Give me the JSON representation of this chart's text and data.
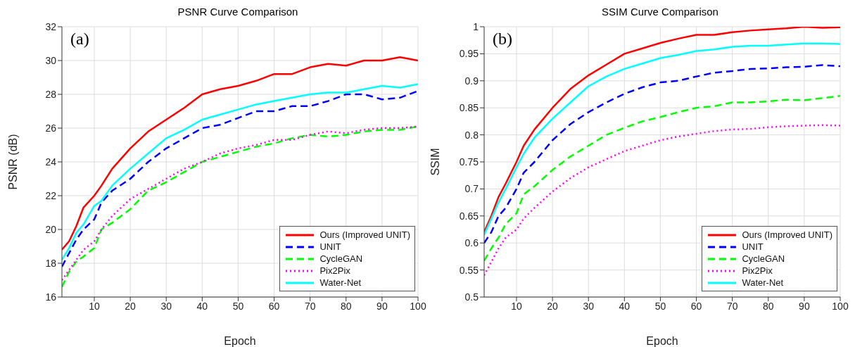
{
  "chart_data": [
    {
      "type": "line",
      "title": "PSNR Curve Comparison",
      "xlabel": "Epoch",
      "ylabel": "PSNR (dB)",
      "annotations": [
        "(a)"
      ],
      "x": [
        1,
        3,
        5,
        7,
        10,
        12,
        15,
        20,
        25,
        30,
        35,
        40,
        45,
        50,
        55,
        60,
        65,
        70,
        75,
        80,
        85,
        90,
        95,
        100
      ],
      "series": [
        {
          "name": "Ours (Improved UNIT)",
          "color": "#ff0000",
          "line_style": "solid",
          "values": [
            18.8,
            19.3,
            20.2,
            21.3,
            22.0,
            22.6,
            23.6,
            24.8,
            25.8,
            26.5,
            27.2,
            28.0,
            28.3,
            28.5,
            28.8,
            29.2,
            29.2,
            29.6,
            29.8,
            29.7,
            30.0,
            30.0,
            30.2,
            30.0
          ]
        },
        {
          "name": "UNIT",
          "color": "#0000ff",
          "line_style": "dashed",
          "values": [
            17.8,
            18.6,
            19.4,
            20.0,
            20.6,
            21.6,
            22.3,
            23.0,
            24.0,
            24.8,
            25.4,
            26.0,
            26.2,
            26.6,
            27.0,
            27.0,
            27.3,
            27.3,
            27.6,
            28.0,
            28.0,
            27.7,
            27.8,
            28.2
          ]
        },
        {
          "name": "CycleGAN",
          "color": "#00ff00",
          "line_style": "dashed",
          "values": [
            16.6,
            17.5,
            18.1,
            18.4,
            18.9,
            20.0,
            20.4,
            21.2,
            22.3,
            22.8,
            23.4,
            24.0,
            24.3,
            24.6,
            24.9,
            25.1,
            25.4,
            25.6,
            25.5,
            25.6,
            25.8,
            25.9,
            25.9,
            26.1
          ]
        },
        {
          "name": "Pix2Pix",
          "color": "#ff00ff",
          "line_style": "dotted",
          "values": [
            17.0,
            17.6,
            18.2,
            18.8,
            19.3,
            20.0,
            20.8,
            21.8,
            22.4,
            23.0,
            23.6,
            24.0,
            24.5,
            24.8,
            25.0,
            25.3,
            25.3,
            25.6,
            25.8,
            25.7,
            25.9,
            26.0,
            26.0,
            26.1
          ]
        },
        {
          "name": "Water-Net",
          "color": "#00ffff",
          "line_style": "solid",
          "values": [
            18.2,
            18.9,
            19.8,
            20.3,
            21.4,
            21.7,
            22.6,
            23.6,
            24.5,
            25.4,
            25.9,
            26.5,
            26.8,
            27.1,
            27.4,
            27.6,
            27.8,
            28.0,
            28.1,
            28.1,
            28.3,
            28.5,
            28.4,
            28.6
          ]
        }
      ],
      "xlim": [
        1,
        100
      ],
      "xticks": [
        10,
        20,
        30,
        40,
        50,
        60,
        70,
        80,
        90,
        100
      ],
      "ylim": [
        16,
        32
      ],
      "yticks": [
        16,
        18,
        20,
        22,
        24,
        26,
        28,
        30,
        32
      ],
      "grid": true,
      "legend": "bottom right",
      "marker": "none"
    },
    {
      "type": "line",
      "title": "SSIM Curve Comparison",
      "xlabel": "Epoch",
      "ylabel": "SSIM",
      "annotations": [
        "(b)"
      ],
      "x": [
        1,
        3,
        5,
        7,
        10,
        12,
        15,
        20,
        25,
        30,
        35,
        40,
        45,
        50,
        55,
        60,
        65,
        70,
        75,
        80,
        85,
        90,
        95,
        100
      ],
      "series": [
        {
          "name": "Ours (Improved UNIT)",
          "color": "#ff0000",
          "line_style": "solid",
          "values": [
            0.62,
            0.65,
            0.685,
            0.71,
            0.75,
            0.78,
            0.81,
            0.85,
            0.885,
            0.91,
            0.93,
            0.95,
            0.96,
            0.97,
            0.978,
            0.985,
            0.985,
            0.99,
            0.993,
            0.995,
            0.997,
            1.0,
            0.998,
            0.999
          ]
        },
        {
          "name": "UNIT",
          "color": "#0000ff",
          "line_style": "dashed",
          "values": [
            0.6,
            0.62,
            0.65,
            0.665,
            0.7,
            0.73,
            0.75,
            0.79,
            0.82,
            0.842,
            0.86,
            0.876,
            0.888,
            0.897,
            0.9,
            0.908,
            0.915,
            0.918,
            0.922,
            0.923,
            0.925,
            0.926,
            0.929,
            0.927
          ]
        },
        {
          "name": "CycleGAN",
          "color": "#00ff00",
          "line_style": "dashed",
          "values": [
            0.567,
            0.59,
            0.61,
            0.635,
            0.655,
            0.69,
            0.705,
            0.735,
            0.76,
            0.78,
            0.8,
            0.813,
            0.825,
            0.833,
            0.842,
            0.85,
            0.853,
            0.86,
            0.86,
            0.862,
            0.865,
            0.864,
            0.868,
            0.872
          ]
        },
        {
          "name": "Pix2Pix",
          "color": "#ff00ff",
          "line_style": "dotted",
          "values": [
            0.54,
            0.565,
            0.59,
            0.61,
            0.625,
            0.645,
            0.665,
            0.695,
            0.72,
            0.74,
            0.755,
            0.77,
            0.78,
            0.79,
            0.797,
            0.802,
            0.807,
            0.81,
            0.811,
            0.814,
            0.816,
            0.817,
            0.818,
            0.817
          ]
        },
        {
          "name": "Water-Net",
          "color": "#00ffff",
          "line_style": "solid",
          "values": [
            0.615,
            0.645,
            0.675,
            0.7,
            0.74,
            0.765,
            0.795,
            0.83,
            0.86,
            0.89,
            0.908,
            0.922,
            0.932,
            0.942,
            0.948,
            0.955,
            0.958,
            0.963,
            0.965,
            0.965,
            0.967,
            0.969,
            0.969,
            0.968
          ]
        }
      ],
      "xlim": [
        1,
        100
      ],
      "xticks": [
        10,
        20,
        30,
        40,
        50,
        60,
        70,
        80,
        90,
        100
      ],
      "ylim": [
        0.5,
        1
      ],
      "yticks": [
        0.5,
        0.55,
        0.6,
        0.65,
        0.7,
        0.75,
        0.8,
        0.85,
        0.9,
        0.95,
        1
      ],
      "grid": true,
      "legend": "bottom right",
      "marker": "none"
    }
  ]
}
